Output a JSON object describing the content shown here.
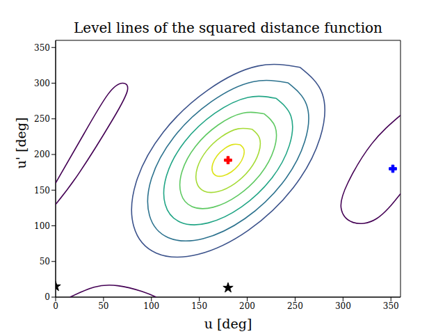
{
  "chart_data": {
    "type": "contour",
    "title": "Level lines of the squared distance function",
    "x_label": "u [deg]",
    "y_label": "u' [deg]",
    "xlim": [
      0,
      360
    ],
    "ylim": [
      0,
      360
    ],
    "xticks": [
      0,
      50,
      100,
      150,
      200,
      250,
      300,
      350
    ],
    "yticks": [
      0,
      50,
      100,
      150,
      200,
      250,
      300,
      350
    ],
    "grid": false,
    "series": [
      {
        "type": "line",
        "line_style": "solid",
        "color": "#dde318",
        "points": [
          [
            192.5,
            213.7
          ],
          [
            185.2,
            214.0
          ],
          [
            176.5,
            208.4
          ],
          [
            168.7,
            198.5
          ],
          [
            164.0,
            186.8
          ],
          [
            163.6,
            176.5
          ],
          [
            167.5,
            170.3
          ],
          [
            174.8,
            170.0
          ],
          [
            183.5,
            175.6
          ],
          [
            191.3,
            185.5
          ],
          [
            196.0,
            197.2
          ],
          [
            196.4,
            207.5
          ],
          [
            192.5,
            213.7
          ]
        ]
      },
      {
        "type": "line",
        "line_style": "solid",
        "color": "#a5db36",
        "points": [
          [
            205,
            235.4
          ],
          [
            190.4,
            236
          ],
          [
            173,
            224.8
          ],
          [
            157.4,
            205
          ],
          [
            148,
            181.6
          ],
          [
            147.2,
            161
          ],
          [
            155,
            148.6
          ],
          [
            169.6,
            148
          ],
          [
            187,
            159.2
          ],
          [
            202.6,
            179
          ],
          [
            212,
            202.4
          ],
          [
            212.8,
            223
          ],
          [
            205,
            235.4
          ]
        ]
      },
      {
        "type": "line",
        "line_style": "solid",
        "color": "#5ec962",
        "points": [
          [
            217.5,
            257.1
          ],
          [
            195.6,
            258
          ],
          [
            169.5,
            241.2
          ],
          [
            146.1,
            211.5
          ],
          [
            132,
            176.4
          ],
          [
            130.8,
            145.5
          ],
          [
            142.5,
            126.9
          ],
          [
            164.4,
            126
          ],
          [
            190.5,
            142.8
          ],
          [
            213.9,
            172.5
          ],
          [
            228,
            207.6
          ],
          [
            229.2,
            238.5
          ],
          [
            217.5,
            257.1
          ]
        ]
      },
      {
        "type": "line",
        "line_style": "solid",
        "color": "#21a585",
        "points": [
          [
            230,
            278.8
          ],
          [
            200.8,
            280
          ],
          [
            166,
            257.6
          ],
          [
            134.8,
            218
          ],
          [
            116,
            171.2
          ],
          [
            114.4,
            130
          ],
          [
            130,
            105.2
          ],
          [
            159.2,
            104
          ],
          [
            194,
            126.4
          ],
          [
            225.2,
            166
          ],
          [
            244,
            212.8
          ],
          [
            245.6,
            254
          ],
          [
            230,
            278.8
          ]
        ]
      },
      {
        "type": "line",
        "line_style": "solid",
        "color": "#2c728e",
        "points": [
          [
            242.5,
            300.5
          ],
          [
            206,
            302
          ],
          [
            162.5,
            274
          ],
          [
            123.5,
            224.5
          ],
          [
            100,
            166
          ],
          [
            98,
            114.5
          ],
          [
            117.5,
            83.5
          ],
          [
            154,
            82
          ],
          [
            197.5,
            110
          ],
          [
            236.5,
            159.5
          ],
          [
            260,
            218
          ],
          [
            262,
            269.5
          ],
          [
            242.5,
            300.5
          ]
        ]
      },
      {
        "type": "line",
        "line_style": "solid",
        "color": "#3b528b",
        "points": [
          [
            255,
            322.2
          ],
          [
            211.2,
            324
          ],
          [
            159,
            290.4
          ],
          [
            112.2,
            231
          ],
          [
            84,
            160.8
          ],
          [
            81.6,
            99
          ],
          [
            105,
            61.8
          ],
          [
            148.8,
            60
          ],
          [
            201,
            93.6
          ],
          [
            247.8,
            153
          ],
          [
            276,
            223.2
          ],
          [
            278.4,
            285
          ],
          [
            255,
            322.2
          ]
        ]
      },
      {
        "type": "line",
        "line_style": "solid",
        "color": "#440154",
        "points": [
          [
            360,
            255
          ],
          [
            330,
            215
          ],
          [
            305,
            160
          ],
          [
            298,
            125
          ],
          [
            310,
            105
          ],
          [
            335,
            110
          ],
          [
            360,
            145
          ]
        ]
      },
      {
        "type": "line",
        "line_style": "solid",
        "color": "#440154",
        "points": [
          [
            0,
            160
          ],
          [
            30,
            230
          ],
          [
            55,
            285
          ],
          [
            70,
            300
          ],
          [
            75,
            290
          ],
          [
            60,
            250
          ],
          [
            25,
            175
          ],
          [
            0,
            130
          ]
        ]
      },
      {
        "type": "line",
        "line_style": "solid",
        "color": "#440154",
        "points": [
          [
            15,
            0
          ],
          [
            40,
            14
          ],
          [
            65,
            16
          ],
          [
            90,
            8
          ],
          [
            105,
            0
          ]
        ]
      },
      {
        "type": "scatter",
        "marker": "plus",
        "color": "#ff0000",
        "points": [
          [
            180,
            192
          ]
        ]
      },
      {
        "type": "scatter",
        "marker": "plus",
        "color": "#0000ff",
        "points": [
          [
            352,
            180
          ]
        ]
      },
      {
        "type": "scatter",
        "marker": "star",
        "color": "#000000",
        "points": [
          [
            0,
            15
          ],
          [
            180,
            13
          ]
        ]
      }
    ]
  }
}
